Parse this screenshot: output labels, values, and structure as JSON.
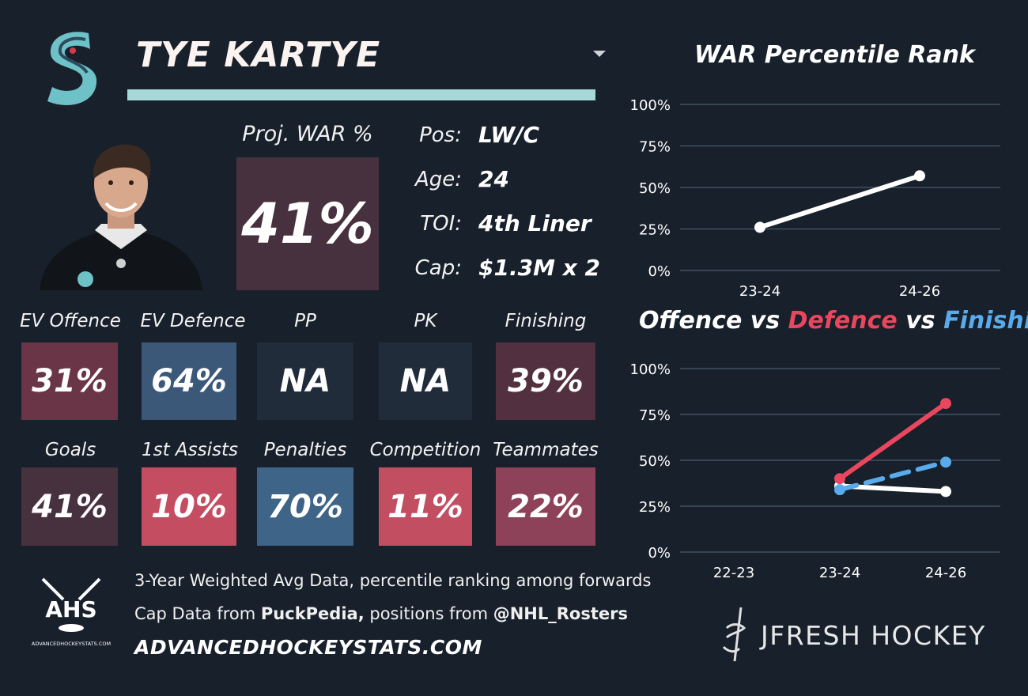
{
  "header": {
    "player_name": "TYE KARTYE"
  },
  "projection": {
    "label": "Proj. WAR %",
    "value": "41%",
    "color": "#48313f"
  },
  "info": [
    {
      "label": "Pos:",
      "value": "LW/C"
    },
    {
      "label": "Age:",
      "value": "24"
    },
    {
      "label": "TOI:",
      "value": "4th Liner"
    },
    {
      "label": "Cap:",
      "value": "$1.3M x 2"
    }
  ],
  "tiles_row1": [
    {
      "label": "EV Offence",
      "value": "31%",
      "color": "#6b3548"
    },
    {
      "label": "EV Defence",
      "value": "64%",
      "color": "#3b5878"
    },
    {
      "label": "PP",
      "value": "NA",
      "color": "#202c3a"
    },
    {
      "label": "PK",
      "value": "NA",
      "color": "#202c3a"
    },
    {
      "label": "Finishing",
      "value": "39%",
      "color": "#523040"
    }
  ],
  "tiles_row2": [
    {
      "label": "Goals",
      "value": "41%",
      "color": "#48313f"
    },
    {
      "label": "1st Assists",
      "value": "10%",
      "color": "#c44d62"
    },
    {
      "label": "Penalties",
      "value": "70%",
      "color": "#3e6488"
    },
    {
      "label": "Competition",
      "value": "11%",
      "color": "#c24e62"
    },
    {
      "label": "Teammates",
      "value": "22%",
      "color": "#8d4259"
    }
  ],
  "footer": {
    "line1": "3-Year Weighted Avg Data, percentile ranking among forwards",
    "line2_prefix": "Cap Data from ",
    "line2_bold1": "PuckPedia,",
    "line2_mid": " positions from ",
    "line2_bold2": "@NHL_Rosters",
    "site": "ADVANCEDHOCKEYSTATS.COM",
    "ahs_logo_text": "AHS",
    "ahs_logo_subtext": "ADVANCEDHOCKEYSTATS.COM",
    "brand": "JFRESH HOCKEY"
  },
  "chart_data": [
    {
      "type": "line",
      "title": "WAR Percentile Rank",
      "categories": [
        "23-24",
        "24-26"
      ],
      "series": [
        {
          "values": [
            26,
            57
          ],
          "color": "#ffffff"
        }
      ],
      "ylim": [
        0,
        100
      ],
      "yticks": [
        "0%",
        "25%",
        "50%",
        "75%",
        "100%"
      ],
      "grid": true
    },
    {
      "type": "line",
      "title_parts": [
        {
          "text": "Offence",
          "color": "#ffffff"
        },
        {
          "text": " vs ",
          "color": "#ffffff"
        },
        {
          "text": "Defence",
          "color": "#e8475e"
        },
        {
          "text": " vs ",
          "color": "#ffffff"
        },
        {
          "text": "Finishing",
          "color": "#5aabeb"
        }
      ],
      "categories": [
        "22-23",
        "23-24",
        "24-26"
      ],
      "series": [
        {
          "name": "Offence",
          "values": [
            null,
            36,
            33
          ],
          "color": "#ffffff",
          "dash": false
        },
        {
          "name": "Defence",
          "values": [
            null,
            40,
            81
          ],
          "color": "#e8475e",
          "dash": false
        },
        {
          "name": "Finishing",
          "values": [
            null,
            34,
            49
          ],
          "color": "#5aabeb",
          "dash": true
        }
      ],
      "ylim": [
        0,
        100
      ],
      "yticks": [
        "0%",
        "25%",
        "50%",
        "75%",
        "100%"
      ],
      "grid": true
    }
  ]
}
